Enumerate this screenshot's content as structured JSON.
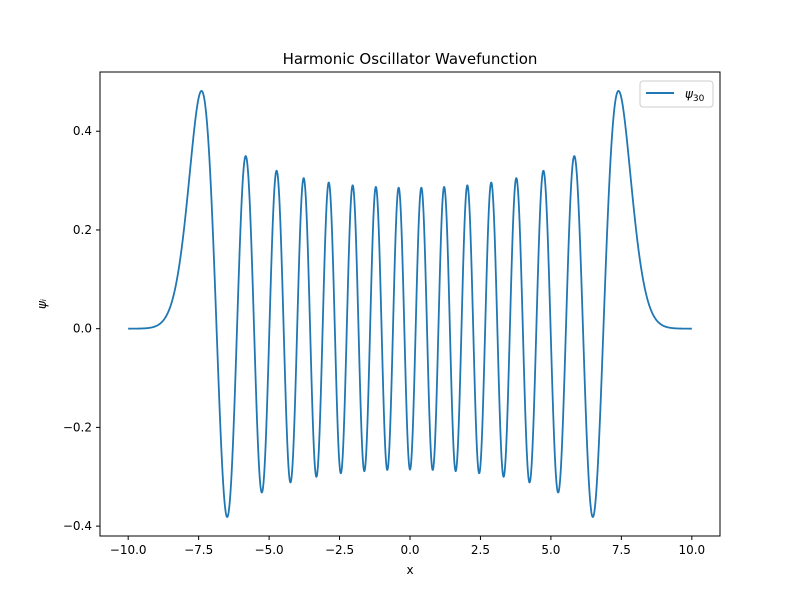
{
  "chart_data": {
    "type": "line",
    "title": "Harmonic Oscillator Wavefunction",
    "xlabel": "x",
    "ylabel": "ψᵢ",
    "xlim": [
      -11.0,
      11.0
    ],
    "ylim": [
      -0.42,
      0.52
    ],
    "xticks": [
      -10.0,
      -7.5,
      -5.0,
      -2.5,
      0.0,
      2.5,
      5.0,
      7.5,
      10.0
    ],
    "xtick_labels": [
      "−10.0",
      "−7.5",
      "−5.0",
      "−2.5",
      "0.0",
      "2.5",
      "5.0",
      "7.5",
      "10.0"
    ],
    "yticks": [
      -0.4,
      -0.2,
      0.0,
      0.2,
      0.4
    ],
    "ytick_labels": [
      "−0.4",
      "−0.2",
      "0.0",
      "0.2",
      "0.4"
    ],
    "grid": false,
    "legend_position": "upper right",
    "series": [
      {
        "name": "ψ",
        "name_subscript": "30",
        "color": "#1f77b4",
        "quantum_number": 30,
        "x_range": [
          -10.0,
          10.0
        ],
        "peak_values": [
          {
            "x": -7.4,
            "y": 0.48
          },
          {
            "x": -6.5,
            "y": -0.38
          },
          {
            "x": -5.85,
            "y": 0.35
          },
          {
            "x": 5.85,
            "y": 0.35
          },
          {
            "x": 6.5,
            "y": -0.38
          },
          {
            "x": 7.4,
            "y": 0.48
          }
        ]
      }
    ]
  }
}
